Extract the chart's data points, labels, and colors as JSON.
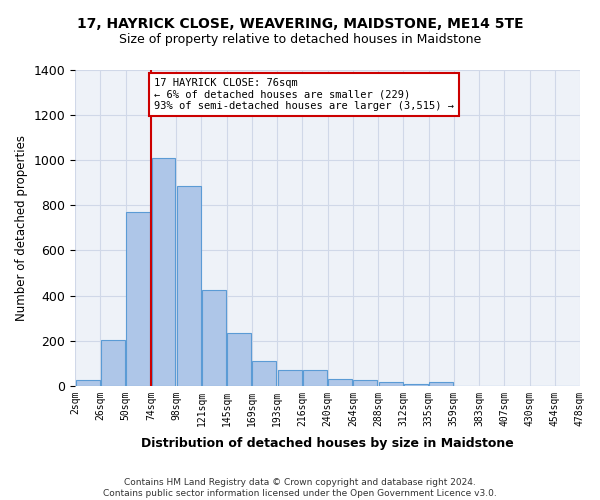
{
  "title": "17, HAYRICK CLOSE, WEAVERING, MAIDSTONE, ME14 5TE",
  "subtitle": "Size of property relative to detached houses in Maidstone",
  "xlabel": "Distribution of detached houses by size in Maidstone",
  "ylabel": "Number of detached properties",
  "bin_labels": [
    "2sqm",
    "26sqm",
    "50sqm",
    "74sqm",
    "98sqm",
    "121sqm",
    "145sqm",
    "169sqm",
    "193sqm",
    "216sqm",
    "240sqm",
    "264sqm",
    "288sqm",
    "312sqm",
    "335sqm",
    "359sqm",
    "383sqm",
    "407sqm",
    "430sqm",
    "454sqm",
    "478sqm"
  ],
  "bar_heights": [
    25,
    205,
    770,
    1010,
    885,
    425,
    235,
    110,
    70,
    70,
    30,
    25,
    18,
    8,
    15,
    0,
    0,
    0,
    0,
    0
  ],
  "bar_color": "#aec6e8",
  "bar_edge_color": "#5b9bd5",
  "annotation_text": "17 HAYRICK CLOSE: 76sqm\n← 6% of detached houses are smaller (229)\n93% of semi-detached houses are larger (3,515) →",
  "annotation_box_color": "#ffffff",
  "annotation_box_edge_color": "#cc0000",
  "red_line_color": "#cc0000",
  "ylim": [
    0,
    1400
  ],
  "yticks": [
    0,
    200,
    400,
    600,
    800,
    1000,
    1200,
    1400
  ],
  "grid_color": "#d0d8e8",
  "bg_color": "#eef2f8",
  "footnote": "Contains HM Land Registry data © Crown copyright and database right 2024.\nContains public sector information licensed under the Open Government Licence v3.0."
}
